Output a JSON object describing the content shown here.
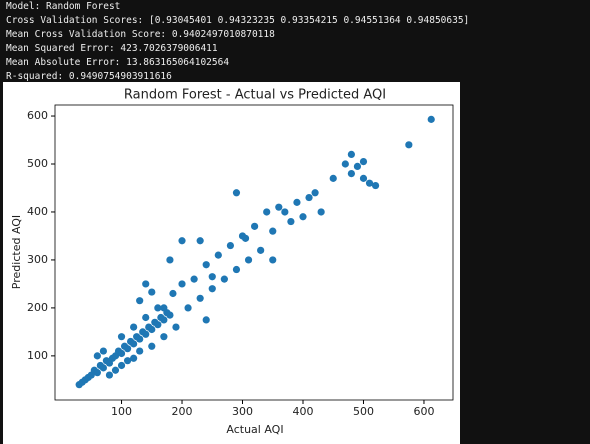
{
  "console": [
    "Model: Random Forest",
    "Cross Validation Scores: [0.93045401 0.94323235 0.93354215 0.94551364 0.94850635]",
    "Mean Cross Validation Score: 0.9402497010870118",
    "Mean Squared Error: 423.7026379006411",
    "Mean Absolute Error: 13.863165064102564",
    "R-squared: 0.9490754903911616"
  ],
  "chart_data": {
    "type": "scatter",
    "title": "Random Forest - Actual vs Predicted AQI",
    "x_label": "Actual AQI",
    "y_label": "Predicted AQI",
    "color": "#1f77b4",
    "x": [
      30,
      35,
      40,
      45,
      50,
      55,
      60,
      65,
      70,
      75,
      80,
      85,
      90,
      95,
      100,
      105,
      110,
      115,
      120,
      125,
      130,
      135,
      140,
      145,
      150,
      155,
      160,
      165,
      170,
      175,
      180,
      60,
      70,
      80,
      90,
      100,
      110,
      120,
      130,
      140,
      150,
      160,
      170,
      100,
      120,
      140,
      130,
      150,
      170,
      185,
      190,
      200,
      210,
      220,
      230,
      240,
      250,
      260,
      270,
      280,
      290,
      300,
      310,
      320,
      330,
      340,
      350,
      360,
      370,
      380,
      390,
      400,
      410,
      420,
      430,
      450,
      470,
      480,
      490,
      500,
      510,
      520,
      500,
      480,
      575,
      612,
      180,
      200,
      230,
      240,
      250,
      290,
      305,
      350
    ],
    "values": [
      40,
      45,
      50,
      55,
      60,
      70,
      65,
      80,
      75,
      90,
      85,
      95,
      100,
      110,
      105,
      120,
      115,
      130,
      125,
      140,
      135,
      150,
      145,
      160,
      155,
      170,
      165,
      180,
      175,
      190,
      185,
      100,
      110,
      60,
      70,
      140,
      90,
      160,
      110,
      180,
      120,
      200,
      140,
      80,
      95,
      250,
      215,
      233,
      200,
      230,
      160,
      250,
      200,
      260,
      220,
      290,
      240,
      310,
      260,
      330,
      280,
      350,
      300,
      370,
      320,
      400,
      360,
      410,
      400,
      380,
      420,
      390,
      430,
      440,
      400,
      470,
      500,
      480,
      495,
      470,
      460,
      455,
      505,
      520,
      540,
      593,
      300,
      340,
      340,
      175,
      265,
      440,
      345,
      300
    ],
    "xlim": [
      -10,
      648
    ],
    "ylim": [
      8,
      623
    ],
    "xticks": [
      100,
      200,
      300,
      400,
      500,
      600
    ],
    "yticks": [
      100,
      200,
      300,
      400,
      500,
      600
    ]
  }
}
